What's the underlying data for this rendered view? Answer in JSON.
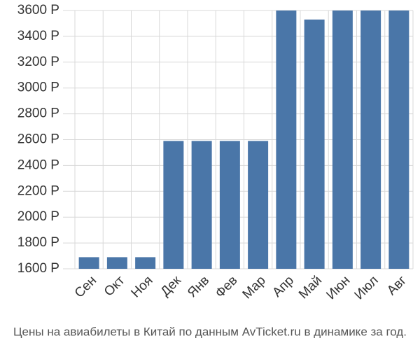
{
  "chart_data": {
    "type": "bar",
    "caption": "Цены на авиабилеты в Китай по данным AvTicket.ru в динамике за год.",
    "categories": [
      "Сен",
      "Окт",
      "Ноя",
      "Дек",
      "Янв",
      "Фев",
      "Мар",
      "Апр",
      "Май",
      "Июн",
      "Июл",
      "Авг"
    ],
    "values": [
      1690,
      1690,
      1690,
      2590,
      2590,
      2590,
      2590,
      3600,
      3530,
      3600,
      3600,
      3600
    ],
    "color": "#4a76a8",
    "ylim": [
      1600,
      3600
    ],
    "yticks": [
      {
        "value": 1600,
        "label": "1600 Р"
      },
      {
        "value": 1800,
        "label": "1800 Р"
      },
      {
        "value": 2000,
        "label": "2000 Р"
      },
      {
        "value": 2200,
        "label": "2200 Р"
      },
      {
        "value": 2400,
        "label": "2400 Р"
      },
      {
        "value": 2600,
        "label": "2600 Р"
      },
      {
        "value": 2800,
        "label": "2800 Р"
      },
      {
        "value": 3000,
        "label": "3000 Р"
      },
      {
        "value": 3200,
        "label": "3200 Р"
      },
      {
        "value": 3400,
        "label": "3400 Р"
      },
      {
        "value": 3600,
        "label": "3600 Р"
      }
    ],
    "grid": true
  }
}
